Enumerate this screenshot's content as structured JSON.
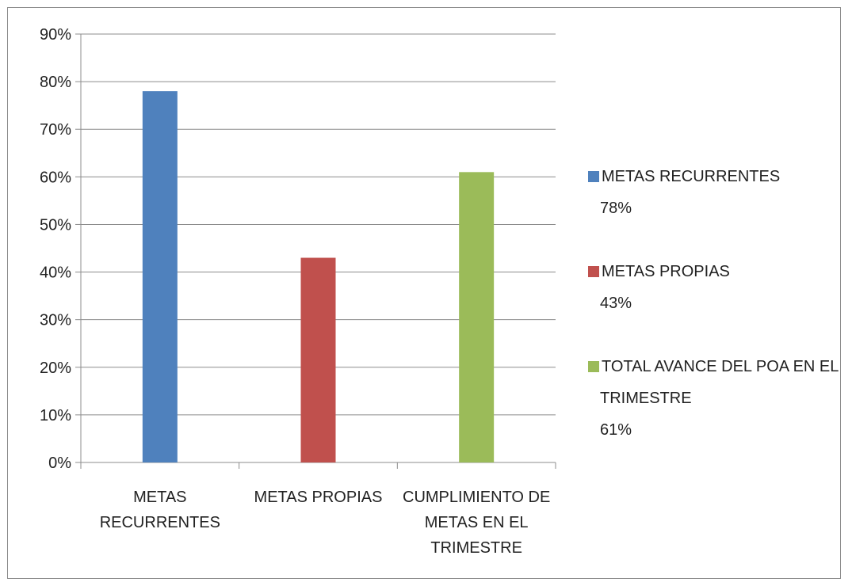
{
  "chart_data": {
    "type": "bar",
    "categories": [
      [
        "METAS",
        "RECURRENTES"
      ],
      [
        "METAS PROPIAS"
      ],
      [
        "CUMPLIMIENTO DE",
        "METAS EN EL",
        "TRIMESTRE"
      ]
    ],
    "values": [
      78,
      43,
      61
    ],
    "colors": [
      "#4f81bd",
      "#c0504d",
      "#9bbb59"
    ],
    "ylim": [
      0,
      90
    ],
    "yticks": [
      0,
      10,
      20,
      30,
      40,
      50,
      60,
      70,
      80,
      90
    ],
    "ytick_format": "{v}%",
    "grid": true,
    "legend_position": "right",
    "legend": [
      {
        "lines": [
          "METAS RECURRENTES",
          "78%"
        ],
        "color": "#4f81bd"
      },
      {
        "lines": [
          "METAS PROPIAS",
          "43%"
        ],
        "color": "#c0504d"
      },
      {
        "lines": [
          "TOTAL AVANCE DEL POA EN EL",
          "TRIMESTRE",
          "61%"
        ],
        "color": "#9bbb59"
      }
    ]
  }
}
